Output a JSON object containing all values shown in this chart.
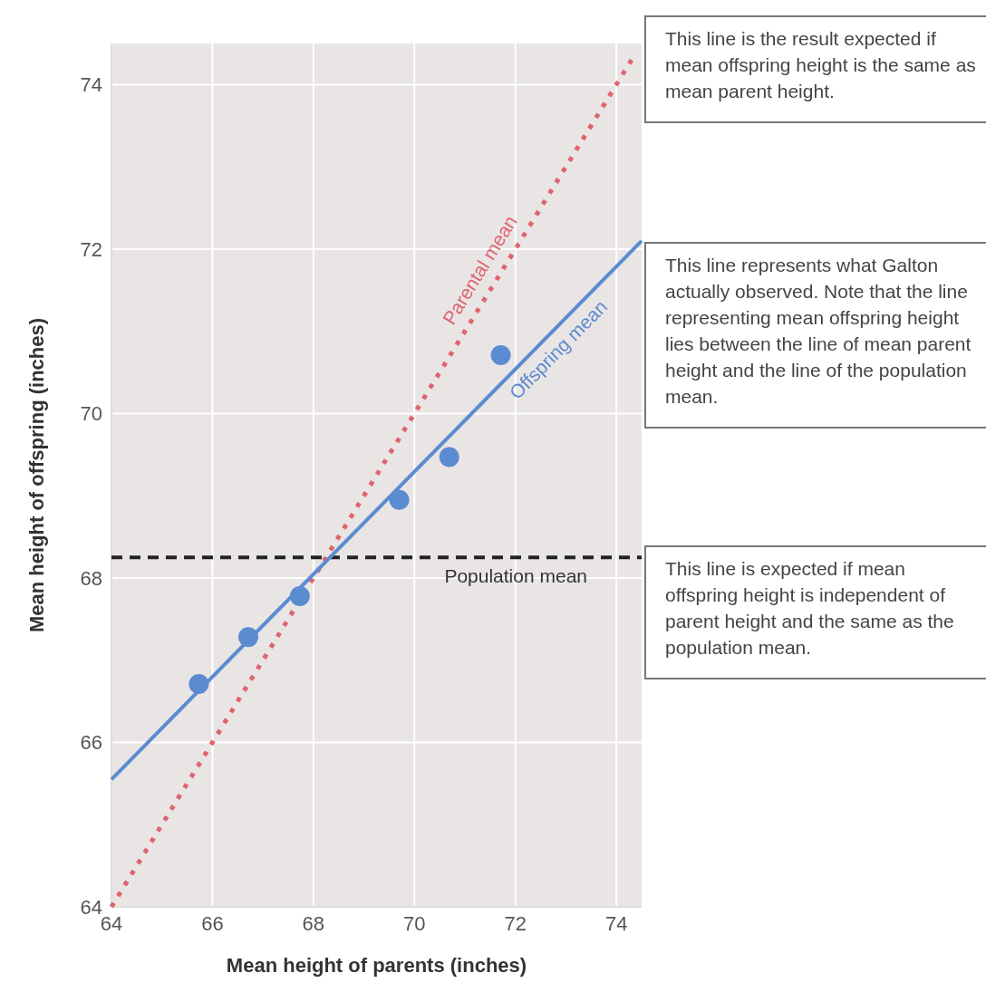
{
  "chart_data": {
    "type": "scatter",
    "xlabel": "Mean height of parents (inches)",
    "ylabel": "Mean height of offspring (inches)",
    "xlim": [
      64,
      74.5
    ],
    "ylim": [
      64,
      74.5
    ],
    "xticks": [
      64,
      66,
      68,
      70,
      72,
      74
    ],
    "yticks": [
      64,
      66,
      68,
      70,
      72,
      74
    ],
    "grid": true,
    "series": [
      {
        "type": "line",
        "name": "Parental mean",
        "color": "#e0636e",
        "line_style": "dotted",
        "x": [
          64,
          74.3
        ],
        "values": [
          64,
          74.3
        ]
      },
      {
        "type": "line",
        "name": "Offspring mean",
        "color": "#5b8bd0",
        "line_style": "solid",
        "x": [
          64,
          74.5
        ],
        "values": [
          65.55,
          72.1
        ]
      },
      {
        "marker": "circle",
        "color": "#5b8bd0",
        "x": [
          65.73,
          66.71,
          67.73,
          69.7,
          70.69,
          71.71
        ],
        "values": [
          66.71,
          67.28,
          67.78,
          68.95,
          69.47,
          70.71
        ]
      }
    ],
    "ref_lines": [
      {
        "axis": "y",
        "value": 68.25,
        "label": "Population mean",
        "color": "#222222",
        "line_style": "dashed"
      }
    ],
    "annotations": [
      "This line is the result expected if mean offspring height is the same as mean parent height.",
      "This line represents what Galton actually observed. Note that the line representing mean offspring height lies between the line of mean parent height and the line of the population mean.",
      "This line is expected if mean offspring height is independent of parent height and the same as the population mean."
    ]
  }
}
